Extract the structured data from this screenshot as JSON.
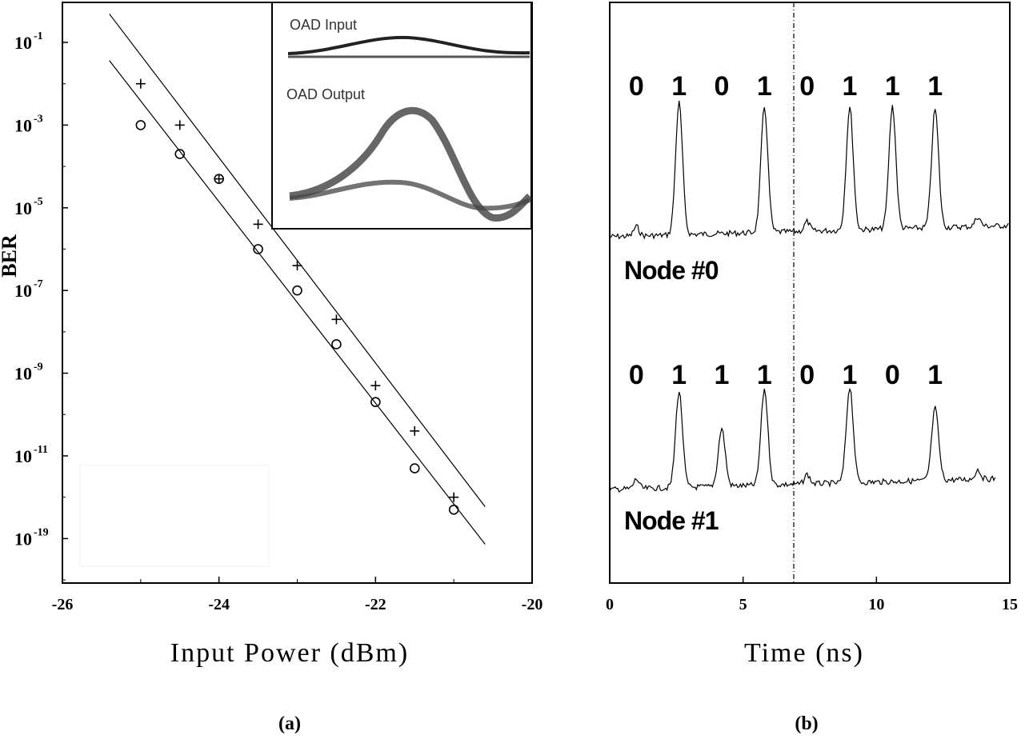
{
  "chart_data": [
    {
      "type": "scatter",
      "panel_label": "(a)",
      "xlabel": "Input Power (dBm)",
      "ylabel": "BER",
      "xlim": [
        -26,
        -20
      ],
      "xticks": [
        "-26",
        "-24",
        "-22",
        "-20"
      ],
      "yscale": "log",
      "yticks": [
        {
          "base": "10",
          "exp": "-1"
        },
        {
          "base": "10",
          "exp": "-3"
        },
        {
          "base": "10",
          "exp": "-5"
        },
        {
          "base": "10",
          "exp": "-7"
        },
        {
          "base": "10",
          "exp": "-9"
        },
        {
          "base": "10",
          "exp": "-11"
        },
        {
          "base": "10",
          "exp": "-19"
        }
      ],
      "series": [
        {
          "marker": "plus",
          "x": [
            -25.0,
            -24.5,
            -24.0,
            -23.5,
            -23.0,
            -22.5,
            -22.0,
            -21.5,
            -21.0
          ],
          "y": [
            "1e-2",
            "1e-3",
            "5e-5",
            "4e-6",
            "4e-7",
            "2e-8",
            "5e-10",
            "4e-11",
            "1e-12"
          ]
        },
        {
          "marker": "circle",
          "x": [
            -25.0,
            -24.5,
            -24.0,
            -23.5,
            -23.0,
            -22.5,
            -22.0,
            -21.5,
            -21.0
          ],
          "y": [
            "1e-3",
            "2e-4",
            "5e-5",
            "1e-6",
            "1e-7",
            "5e-9",
            "2e-10",
            "5e-12",
            "5e-13"
          ]
        }
      ],
      "inset": {
        "labels": [
          "OAD Input",
          "OAD Output"
        ]
      }
    },
    {
      "type": "line",
      "panel_label": "(b)",
      "xlabel": "Time (ns)",
      "xlim": [
        0,
        15
      ],
      "xticks": [
        "0",
        "5",
        "10",
        "15"
      ],
      "marker_line_x": 6.9,
      "traces": [
        {
          "name": "Node #0",
          "bits": [
            "0",
            "1",
            "0",
            "1",
            "0",
            "1",
            "1",
            "1"
          ],
          "peaks_ns": [
            2.6,
            5.8,
            9.0,
            10.6,
            12.2
          ],
          "peak_amplitudes": [
            1.0,
            0.95,
            0.93,
            0.93,
            0.9
          ]
        },
        {
          "name": "Node #1",
          "bits": [
            "0",
            "1",
            "1",
            "1",
            "0",
            "1",
            "0",
            "1"
          ],
          "peaks_ns": [
            2.6,
            4.2,
            5.8,
            9.0,
            12.2
          ],
          "peak_amplitudes": [
            1.0,
            0.6,
            1.0,
            1.0,
            0.75
          ]
        }
      ]
    }
  ]
}
